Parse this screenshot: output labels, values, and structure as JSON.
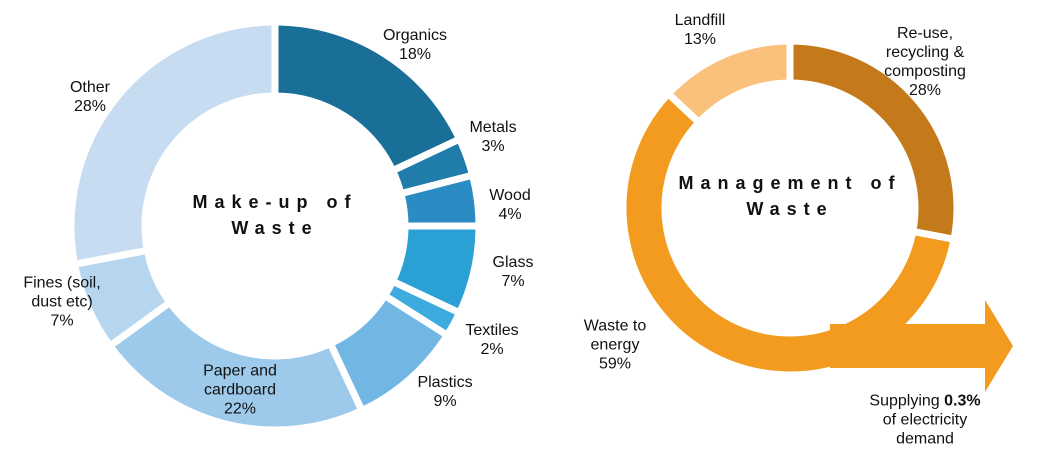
{
  "chart_data": [
    {
      "type": "donut",
      "title": "Make-up of Waste",
      "categories": [
        "Organics",
        "Metals",
        "Wood",
        "Glass",
        "Textiles",
        "Plastics",
        "Paper and cardboard",
        "Fines (soil, dust etc)",
        "Other"
      ],
      "values": [
        18,
        3,
        4,
        7,
        2,
        9,
        22,
        7,
        28
      ],
      "value_labels": [
        "18%",
        "3%",
        "4%",
        "7%",
        "2%",
        "9%",
        "22%",
        "7%",
        "28%"
      ],
      "colors": [
        "#1a6f98",
        "#1f7cab",
        "#2a8cc2",
        "#2aa0d5",
        "#3eabdf",
        "#72b7e3",
        "#9dcaeb",
        "#b6d5ee",
        "#c7dcf0"
      ]
    },
    {
      "type": "donut",
      "title": "Management of Waste",
      "categories": [
        "Re-use, recycling & composting",
        "Waste to energy",
        "Landfill"
      ],
      "values": [
        28,
        59,
        13
      ],
      "value_labels": [
        "28%",
        "59%",
        "13%"
      ],
      "colors": [
        "#c47a1b",
        "#f39b1f",
        "#fac17c"
      ],
      "annotation": {
        "before": "Supplying",
        "emphasis": "0.3%",
        "after": "of electricity demand"
      }
    }
  ]
}
